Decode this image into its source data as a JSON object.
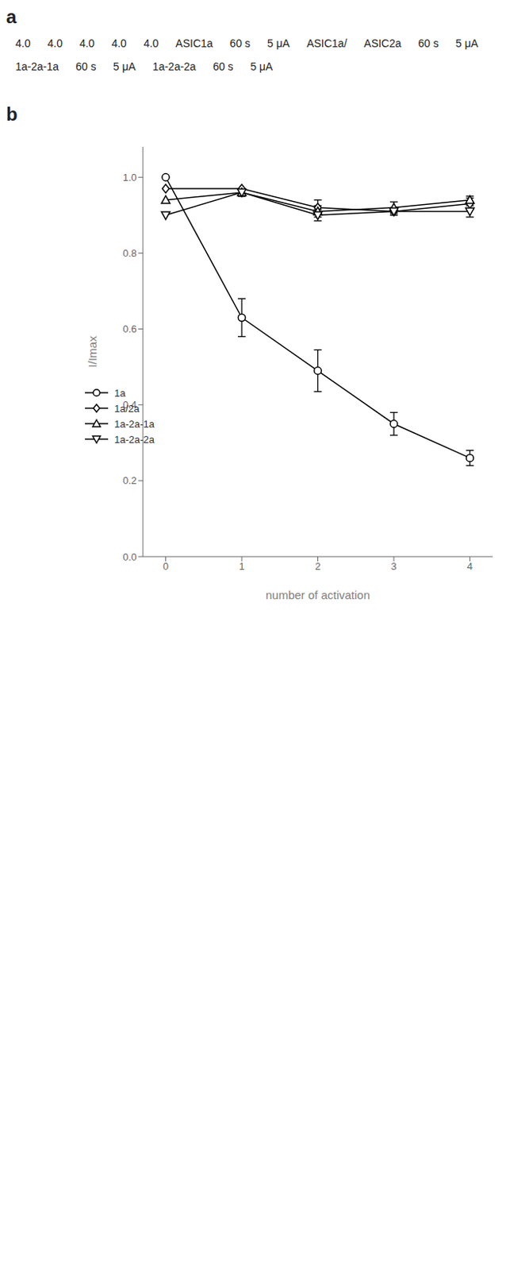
{
  "chart_data": {
    "type": "line",
    "annotations": [
      "a",
      "4.0",
      "4.0",
      "4.0",
      "4.0",
      "4.0",
      "ASIC1a",
      "60 s",
      "5 μA",
      "ASIC1a/",
      "ASIC2a",
      "60 s",
      "5 μA",
      "1a-2a-1a",
      "60 s",
      "5 μA",
      "1a-2a-2a",
      "60 s",
      "5 μA",
      "b"
    ],
    "x": [
      0,
      1,
      2,
      3,
      4
    ],
    "series": [
      {
        "name": "1a",
        "color": "black",
        "marker": "circle",
        "values": [
          1.0,
          0.63,
          0.49,
          0.35,
          0.26
        ],
        "error": [
          0.0,
          0.05,
          0.055,
          0.03,
          0.02
        ]
      },
      {
        "name": "1a/2a",
        "color": "black",
        "marker": "diamond",
        "values": [
          0.97,
          0.97,
          0.92,
          0.91,
          0.93
        ],
        "error": [
          0.0,
          0.0,
          0.02,
          0.01,
          0.015
        ]
      },
      {
        "name": "1a-2a-1a",
        "color": "black",
        "marker": "triangle-up",
        "values": [
          0.94,
          0.96,
          0.91,
          0.92,
          0.94
        ],
        "error": [
          0.0,
          0.01,
          0.015,
          0.015,
          0.01
        ]
      },
      {
        "name": "1a-2a-2a",
        "color": "black",
        "marker": "triangle-down",
        "values": [
          0.9,
          0.96,
          0.9,
          0.91,
          0.91
        ],
        "error": [
          0.0,
          0.01,
          0.015,
          0.01,
          0.015
        ]
      }
    ],
    "xlabel": "number of activation",
    "ylabel": "I/Imax",
    "xlim": [
      -0.3,
      4.3
    ],
    "xticks": [
      0,
      1,
      2,
      3,
      4
    ],
    "ylim": [
      0.0,
      1.08
    ],
    "yticks": [
      {
        "value": 0.0,
        "label": "0.0"
      },
      0.2,
      0.4,
      0.6,
      0.8,
      {
        "value": 1.0,
        "label": "1.0"
      }
    ],
    "legend": "left",
    "grid": false
  }
}
